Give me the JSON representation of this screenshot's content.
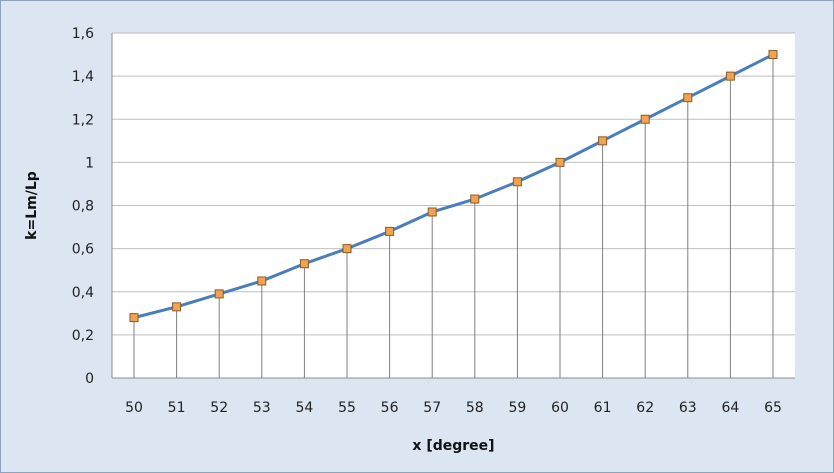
{
  "chart_data": {
    "type": "line",
    "title": "",
    "xlabel": "x [degree]",
    "ylabel": "k=Lm/Lp",
    "x": [
      50,
      51,
      52,
      53,
      54,
      55,
      56,
      57,
      58,
      59,
      60,
      61,
      62,
      63,
      64,
      65
    ],
    "x_tick_labels": [
      "50",
      "51",
      "52",
      "53",
      "54",
      "55",
      "56",
      "57",
      "58",
      "59",
      "60",
      "61",
      "62",
      "63",
      "64",
      "65"
    ],
    "series": [
      {
        "values": [
          0.28,
          0.33,
          0.39,
          0.45,
          0.53,
          0.6,
          0.68,
          0.77,
          0.83,
          0.91,
          1.0,
          1.1,
          1.2,
          1.3,
          1.4,
          1.5
        ]
      }
    ],
    "ylim": [
      0,
      1.6
    ],
    "y_ticks": [
      0,
      0.2,
      0.4,
      0.6,
      0.8,
      1,
      1.2,
      1.4,
      1.6
    ],
    "y_tick_labels": [
      "0",
      "0,2",
      "0,4",
      "0,6",
      "0,8",
      "1",
      "1,2",
      "1,4",
      "1,6"
    ],
    "grid": "horizontal",
    "drop_lines": true,
    "marker": "square",
    "legend": "none",
    "colors": {
      "line": "#4a7ebb",
      "marker_fill": "#f0a450",
      "marker_edge": "#8a5a2a",
      "drop_line": "#7f7f7f",
      "grid": "#bfbfbf",
      "chart_bg": "#dce6f2",
      "plot_bg": "#ffffff"
    }
  }
}
